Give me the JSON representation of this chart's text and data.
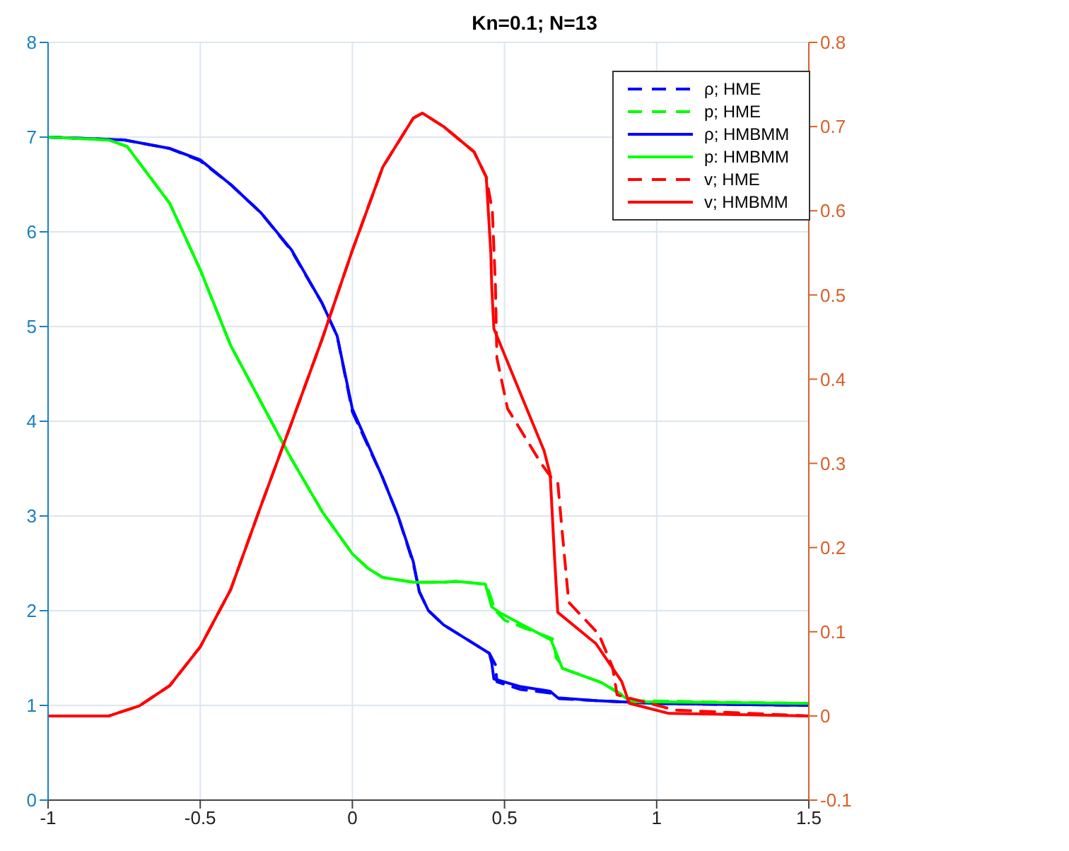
{
  "chart_data": {
    "type": "line",
    "title": "Kn=0.1; N=13",
    "xlim": [
      -1,
      1.5
    ],
    "xticks": [
      -1,
      -0.5,
      0,
      0.5,
      1,
      1.5
    ],
    "ylim": [
      0,
      8
    ],
    "yticks": [
      0,
      1,
      2,
      3,
      4,
      5,
      6,
      7,
      8
    ],
    "y2lim": [
      -0.1,
      0.8
    ],
    "y2ticks": [
      -0.1,
      0,
      0.1,
      0.2,
      0.3,
      0.4,
      0.5,
      0.6,
      0.7,
      0.8
    ],
    "grid": true,
    "legend": "top right",
    "series": [
      {
        "name": "ρ; HME",
        "color": "#0000ff",
        "line_style": "dashed",
        "x": [
          -1,
          -0.75,
          -0.6,
          -0.5,
          -0.4,
          -0.3,
          -0.2,
          -0.1,
          -0.05,
          0,
          0.1,
          0.15,
          0.2,
          0.22,
          0.25,
          0.3,
          0.4,
          0.45,
          0.47,
          0.475,
          0.55,
          0.65,
          0.68,
          0.8,
          1,
          1.5
        ],
        "values": [
          7,
          6.97,
          6.88,
          6.75,
          6.5,
          6.2,
          5.8,
          5.25,
          4.9,
          4.1,
          3.4,
          3,
          2.5,
          2.2,
          2,
          1.85,
          1.65,
          1.55,
          1.43,
          1.25,
          1.17,
          1.13,
          1.07,
          1.05,
          1.02,
          1
        ]
      },
      {
        "name": "p; HME",
        "color": "#00ff00",
        "line_style": "dashed",
        "x": [
          -1,
          -0.8,
          -0.74,
          -0.6,
          -0.5,
          -0.4,
          -0.3,
          -0.2,
          -0.1,
          0,
          0.05,
          0.1,
          0.2,
          0.3,
          0.34,
          0.44,
          0.47,
          0.5,
          0.58,
          0.66,
          0.67,
          0.7,
          0.82,
          0.92,
          1.5
        ],
        "values": [
          7,
          6.97,
          6.9,
          6.3,
          5.6,
          4.8,
          4.2,
          3.6,
          3.05,
          2.6,
          2.45,
          2.35,
          2.3,
          2.3,
          2.31,
          2.28,
          2.0,
          1.9,
          1.8,
          1.7,
          1.5,
          1.38,
          1.24,
          1.05,
          1.02
        ]
      },
      {
        "name": "ρ; HMBMM",
        "color": "#0000ff",
        "line_style": "solid",
        "x": [
          -1,
          -0.75,
          -0.6,
          -0.5,
          -0.4,
          -0.3,
          -0.2,
          -0.1,
          -0.05,
          0,
          0.1,
          0.15,
          0.2,
          0.22,
          0.25,
          0.3,
          0.4,
          0.45,
          0.458,
          0.465,
          0.55,
          0.65,
          0.675,
          0.8,
          1,
          1.5
        ],
        "values": [
          7,
          6.97,
          6.88,
          6.76,
          6.5,
          6.2,
          5.81,
          5.25,
          4.9,
          4.13,
          3.4,
          3,
          2.52,
          2.2,
          2,
          1.85,
          1.65,
          1.55,
          1.45,
          1.28,
          1.2,
          1.15,
          1.08,
          1.05,
          1.02,
          1
        ]
      },
      {
        "name": "p: HMBMM",
        "color": "#00ff00",
        "line_style": "solid",
        "x": [
          -1,
          -0.8,
          -0.74,
          -0.6,
          -0.5,
          -0.4,
          -0.3,
          -0.2,
          -0.1,
          0,
          0.05,
          0.1,
          0.2,
          0.3,
          0.34,
          0.437,
          0.458,
          0.484,
          0.653,
          0.69,
          0.82,
          0.917,
          1.5
        ],
        "values": [
          7,
          6.97,
          6.9,
          6.3,
          5.6,
          4.8,
          4.2,
          3.6,
          3.05,
          2.6,
          2.45,
          2.35,
          2.3,
          2.3,
          2.31,
          2.28,
          2.04,
          1.98,
          1.69,
          1.39,
          1.24,
          1.04,
          1.02
        ]
      },
      {
        "name": "v; HME",
        "color": "#ff0000",
        "line_style": "dashed",
        "axis": "y2",
        "x": [
          -1,
          -0.8,
          -0.7,
          -0.6,
          -0.5,
          -0.4,
          -0.3,
          -0.2,
          -0.1,
          0,
          0.1,
          0.2,
          0.23,
          0.3,
          0.4,
          0.44,
          0.46,
          0.47,
          0.475,
          0.51,
          0.62,
          0.66,
          0.675,
          0.69,
          0.711,
          0.81,
          0.855,
          0.87,
          1.06,
          1.5
        ],
        "values": [
          0,
          0,
          0.012,
          0.036,
          0.082,
          0.15,
          0.25,
          0.348,
          0.447,
          0.553,
          0.652,
          0.71,
          0.716,
          0.7,
          0.67,
          0.64,
          0.6,
          0.512,
          0.425,
          0.365,
          0.3,
          0.28,
          0.277,
          0.217,
          0.135,
          0.097,
          0.058,
          0.025,
          0.007,
          0
        ]
      },
      {
        "name": "v; HMBMM",
        "color": "#ff0000",
        "line_style": "solid",
        "axis": "y2",
        "x": [
          -1,
          -0.8,
          -0.7,
          -0.6,
          -0.5,
          -0.4,
          -0.3,
          -0.2,
          -0.1,
          0,
          0.1,
          0.2,
          0.23,
          0.3,
          0.4,
          0.44,
          0.455,
          0.458,
          0.465,
          0.55,
          0.63,
          0.65,
          0.665,
          0.675,
          0.8,
          0.885,
          0.91,
          1.04,
          1.5
        ],
        "values": [
          0,
          0,
          0.012,
          0.036,
          0.082,
          0.15,
          0.25,
          0.348,
          0.447,
          0.553,
          0.652,
          0.71,
          0.716,
          0.7,
          0.67,
          0.64,
          0.55,
          0.51,
          0.46,
          0.385,
          0.315,
          0.287,
          0.184,
          0.123,
          0.086,
          0.041,
          0.015,
          0.003,
          0
        ]
      }
    ]
  }
}
